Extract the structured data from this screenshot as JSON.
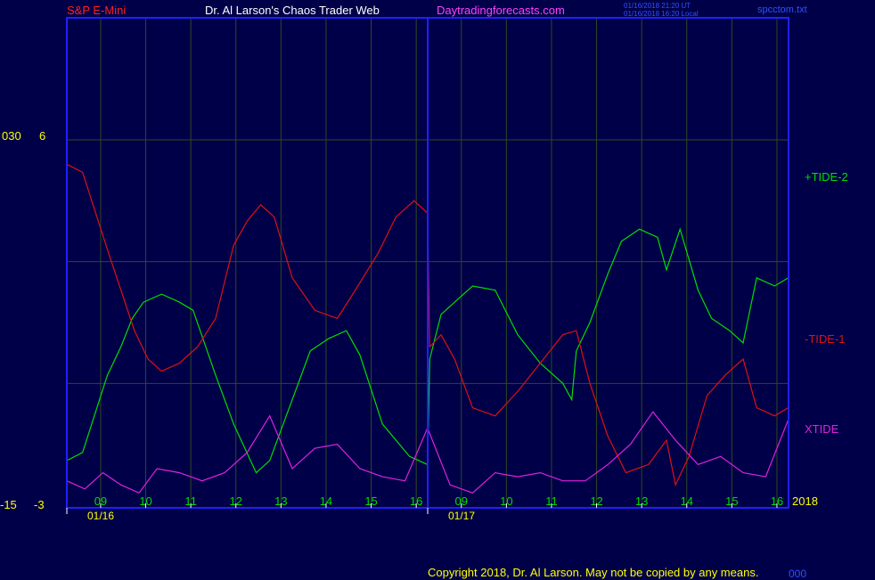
{
  "header": {
    "symbol": "S&P E-Mini",
    "author": "Dr. Al Larson's Chaos Trader Web",
    "site": "Daytradingforecasts.com",
    "stamp_line1": "01/16/2018 21:20 UT",
    "stamp_line2": "01/16/2018 16:20 Local",
    "file": "spcctom.txt"
  },
  "footer": {
    "copyright": "Copyright 2018, Dr. Al Larson. May not be copied by any means.",
    "tag": "000"
  },
  "colors": {
    "background": "#000048",
    "frame": "#2020ff",
    "grid": "#2e4a1e",
    "tide_plus": "#00dd00",
    "tide_minus": "#dd1111",
    "xtide": "#e020e0",
    "hour_label": "#00dd00",
    "value_label": "#ffff00"
  },
  "chart_data": {
    "type": "line",
    "x_unit": "hour, 01/16 09:00 – 01/17 16:00",
    "hour_ticks": [
      "09",
      "10",
      "11",
      "12",
      "13",
      "14",
      "15",
      "16",
      "09",
      "10",
      "11",
      "12",
      "13",
      "14",
      "15",
      "16"
    ],
    "date_labels": [
      "01/16",
      "01/17"
    ],
    "year_label": "2018",
    "left_axis_labels": {
      "top_outer": "030",
      "top_inner": "6",
      "bottom_outer": "-15",
      "bottom_inner": "-3"
    },
    "ylim_main": [
      -3,
      6
    ],
    "grid": true,
    "series": [
      {
        "name": "+TIDE-2",
        "color": "#00dd00",
        "points": [
          [
            0,
            -1.9
          ],
          [
            0.35,
            -1.7
          ],
          [
            0.9,
            0.2
          ],
          [
            1.2,
            0.9
          ],
          [
            1.45,
            1.6
          ],
          [
            1.7,
            2.0
          ],
          [
            2.1,
            2.2
          ],
          [
            2.5,
            2.0
          ],
          [
            2.8,
            1.8
          ],
          [
            3.3,
            0.2
          ],
          [
            3.7,
            -1.0
          ],
          [
            4.2,
            -2.2
          ],
          [
            4.5,
            -1.9
          ],
          [
            5.0,
            -0.4
          ],
          [
            5.4,
            0.8
          ],
          [
            5.8,
            1.1
          ],
          [
            6.2,
            1.3
          ],
          [
            6.5,
            0.7
          ],
          [
            7.0,
            -1.0
          ],
          [
            7.6,
            -1.8
          ],
          [
            8.0,
            -2.0
          ],
          [
            8.05,
            0.6
          ],
          [
            8.3,
            1.7
          ],
          [
            8.6,
            2.0
          ],
          [
            9.0,
            2.4
          ],
          [
            9.5,
            2.3
          ],
          [
            10.0,
            1.2
          ],
          [
            10.5,
            0.5
          ],
          [
            11.0,
            0.0
          ],
          [
            11.2,
            -0.4
          ],
          [
            11.3,
            0.8
          ],
          [
            11.6,
            1.5
          ],
          [
            12.0,
            2.7
          ],
          [
            12.3,
            3.5
          ],
          [
            12.7,
            3.8
          ],
          [
            13.1,
            3.6
          ],
          [
            13.3,
            2.8
          ],
          [
            13.6,
            3.8
          ],
          [
            14.0,
            2.3
          ],
          [
            14.3,
            1.6
          ],
          [
            14.7,
            1.3
          ],
          [
            15.0,
            1.0
          ],
          [
            15.3,
            2.6
          ],
          [
            15.7,
            2.4
          ],
          [
            16.0,
            2.6
          ]
        ]
      },
      {
        "name": "-TIDE-1",
        "color": "#dd1111",
        "points": [
          [
            0,
            5.4
          ],
          [
            0.35,
            5.2
          ],
          [
            0.9,
            3.3
          ],
          [
            1.2,
            2.3
          ],
          [
            1.5,
            1.3
          ],
          [
            1.8,
            0.6
          ],
          [
            2.1,
            0.3
          ],
          [
            2.5,
            0.5
          ],
          [
            2.9,
            0.9
          ],
          [
            3.3,
            1.6
          ],
          [
            3.7,
            3.4
          ],
          [
            4.0,
            4.0
          ],
          [
            4.3,
            4.4
          ],
          [
            4.6,
            4.1
          ],
          [
            5.0,
            2.6
          ],
          [
            5.5,
            1.8
          ],
          [
            6.0,
            1.6
          ],
          [
            6.4,
            2.3
          ],
          [
            6.9,
            3.2
          ],
          [
            7.3,
            4.1
          ],
          [
            7.7,
            4.5
          ],
          [
            8.0,
            4.2
          ],
          [
            8.05,
            0.9
          ],
          [
            8.3,
            1.2
          ],
          [
            8.6,
            0.6
          ],
          [
            9.0,
            -0.6
          ],
          [
            9.5,
            -0.8
          ],
          [
            10.0,
            -0.2
          ],
          [
            10.5,
            0.5
          ],
          [
            11.0,
            1.2
          ],
          [
            11.3,
            1.3
          ],
          [
            11.6,
            0.0
          ],
          [
            12.0,
            -1.3
          ],
          [
            12.4,
            -2.2
          ],
          [
            12.9,
            -2.0
          ],
          [
            13.3,
            -1.4
          ],
          [
            13.5,
            -2.5
          ],
          [
            13.8,
            -1.8
          ],
          [
            14.2,
            -0.3
          ],
          [
            14.6,
            0.2
          ],
          [
            15.0,
            0.6
          ],
          [
            15.3,
            -0.6
          ],
          [
            15.7,
            -0.8
          ],
          [
            16.0,
            -0.6
          ]
        ]
      },
      {
        "name": "XTIDE",
        "color": "#e020e0",
        "points": [
          [
            0,
            -2.4
          ],
          [
            0.4,
            -2.6
          ],
          [
            0.8,
            -2.2
          ],
          [
            1.2,
            -2.5
          ],
          [
            1.6,
            -2.7
          ],
          [
            2.0,
            -2.1
          ],
          [
            2.5,
            -2.2
          ],
          [
            3.0,
            -2.4
          ],
          [
            3.5,
            -2.2
          ],
          [
            4.0,
            -1.7
          ],
          [
            4.5,
            -0.8
          ],
          [
            5.0,
            -2.1
          ],
          [
            5.5,
            -1.6
          ],
          [
            6.0,
            -1.5
          ],
          [
            6.5,
            -2.1
          ],
          [
            7.0,
            -2.3
          ],
          [
            7.5,
            -2.4
          ],
          [
            8.0,
            -1.1
          ],
          [
            8.5,
            -2.5
          ],
          [
            9.0,
            -2.7
          ],
          [
            9.5,
            -2.2
          ],
          [
            10.0,
            -2.3
          ],
          [
            10.5,
            -2.2
          ],
          [
            11.0,
            -2.4
          ],
          [
            11.5,
            -2.4
          ],
          [
            12.0,
            -2.0
          ],
          [
            12.5,
            -1.5
          ],
          [
            13.0,
            -0.7
          ],
          [
            13.5,
            -1.4
          ],
          [
            14.0,
            -2.0
          ],
          [
            14.5,
            -1.8
          ],
          [
            15.0,
            -2.2
          ],
          [
            15.5,
            -2.3
          ],
          [
            16.0,
            -0.9
          ]
        ]
      }
    ]
  }
}
